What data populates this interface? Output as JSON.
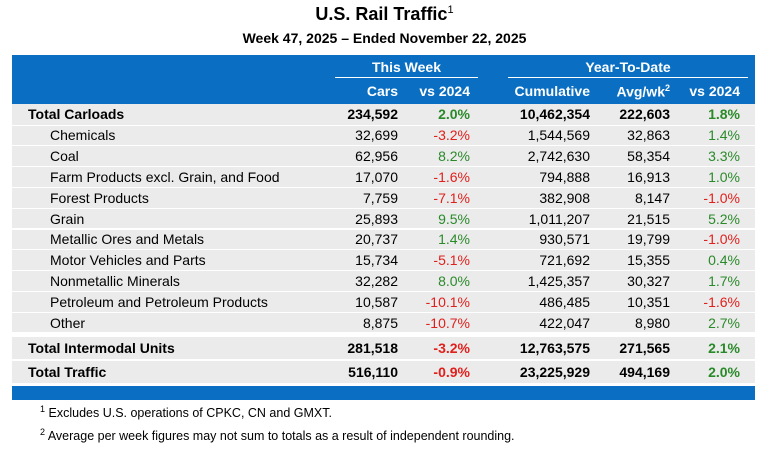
{
  "title": {
    "text": "U.S. Rail Traffic",
    "marker": "1"
  },
  "subtitle": "Week 47, 2025 – Ended November 22, 2025",
  "header": {
    "groups": [
      "This Week",
      "Year-To-Date"
    ],
    "columns": [
      {
        "text": "Cars"
      },
      {
        "text": "vs 2024"
      },
      {
        "text": "Cumulative"
      },
      {
        "text": "Avg/wk",
        "marker": "2"
      },
      {
        "text": "vs 2024"
      }
    ]
  },
  "table": {
    "total_carloads": {
      "label": "Total Carloads",
      "cells": [
        "234,592",
        "2.0%",
        "10,462,354",
        "222,603",
        "1.8%"
      ]
    },
    "commodities": [
      {
        "label": "Chemicals",
        "cells": [
          "32,699",
          "-3.2%",
          "1,544,569",
          "32,863",
          "1.4%"
        ]
      },
      {
        "label": "Coal",
        "cells": [
          "62,956",
          "8.2%",
          "2,742,630",
          "58,354",
          "3.3%"
        ]
      },
      {
        "label": "Farm Products excl. Grain, and Food",
        "cells": [
          "17,070",
          "-1.6%",
          "794,888",
          "16,913",
          "1.0%"
        ]
      },
      {
        "label": "Forest Products",
        "cells": [
          "7,759",
          "-7.1%",
          "382,908",
          "8,147",
          "-1.0%"
        ]
      },
      {
        "label": "Grain",
        "cells": [
          "25,893",
          "9.5%",
          "1,011,207",
          "21,515",
          "5.2%"
        ]
      },
      {
        "label": "Metallic Ores and Metals",
        "cells": [
          "20,737",
          "1.4%",
          "930,571",
          "19,799",
          "-1.0%"
        ]
      },
      {
        "label": "Motor Vehicles and Parts",
        "cells": [
          "15,734",
          "-5.1%",
          "721,692",
          "15,355",
          "0.4%"
        ]
      },
      {
        "label": "Nonmetallic Minerals",
        "cells": [
          "32,282",
          "8.0%",
          "1,425,357",
          "30,327",
          "1.7%"
        ]
      },
      {
        "label": "Petroleum and Petroleum Products",
        "cells": [
          "10,587",
          "-10.1%",
          "486,485",
          "10,351",
          "-1.6%"
        ]
      },
      {
        "label": "Other",
        "cells": [
          "8,875",
          "-10.7%",
          "422,047",
          "8,980",
          "2.7%"
        ]
      }
    ],
    "totals": [
      {
        "label": "Total Intermodal Units",
        "cells": [
          "281,518",
          "-3.2%",
          "12,763,575",
          "271,565",
          "2.1%"
        ]
      },
      {
        "label": "Total Traffic",
        "cells": [
          "516,110",
          "-0.9%",
          "23,225,929",
          "494,169",
          "2.0%"
        ]
      }
    ]
  },
  "footnotes": [
    {
      "marker": "1",
      "text": "Excludes U.S. operations of CPKC, CN and GMXT."
    },
    {
      "marker": "2",
      "text": "Average per week figures may not sum to totals as a result of independent rounding."
    }
  ]
}
